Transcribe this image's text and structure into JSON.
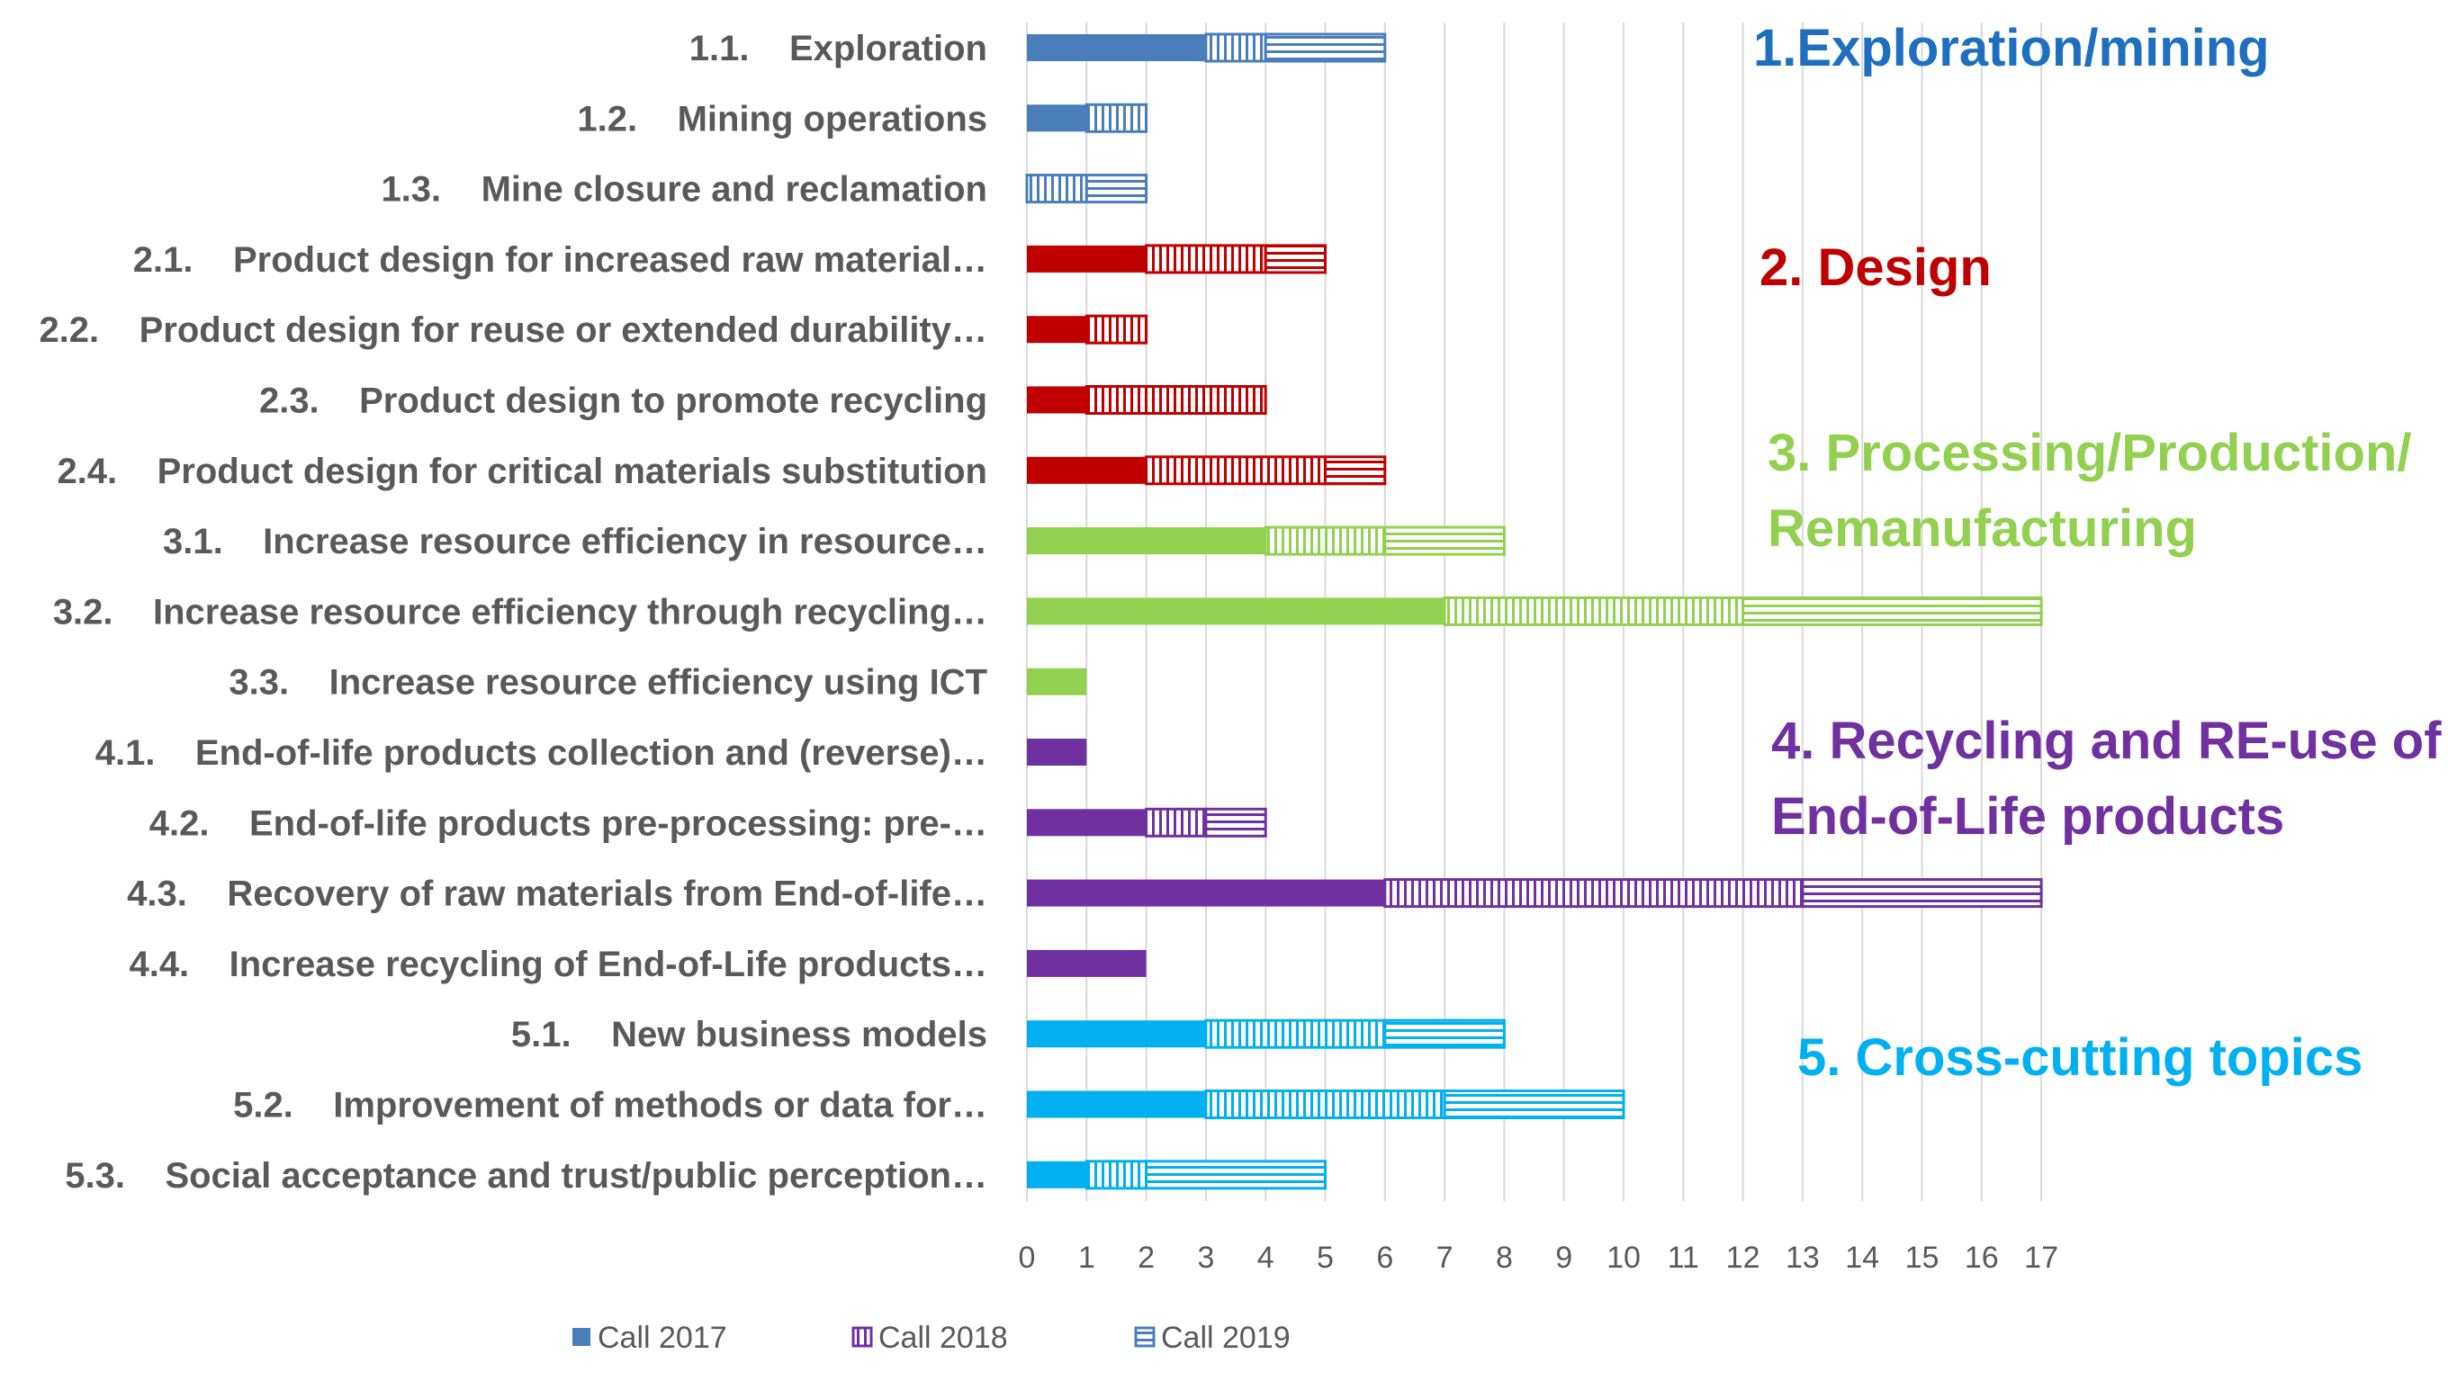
{
  "chart_data": {
    "type": "bar",
    "orientation": "horizontal",
    "stacked": true,
    "xlim": [
      0,
      17
    ],
    "xticks": [
      "0",
      "1",
      "2",
      "3",
      "4",
      "5",
      "6",
      "7",
      "8",
      "9",
      "10",
      "11",
      "12",
      "13",
      "14",
      "15",
      "16",
      "17"
    ],
    "grid": true,
    "legend_position": "bottom",
    "categories": [
      {
        "label": "1.1.    Exploration",
        "group": 1
      },
      {
        "label": "1.2.    Mining operations",
        "group": 1
      },
      {
        "label": "1.3.    Mine closure and reclamation",
        "group": 1
      },
      {
        "label": "2.1.    Product design for increased raw material…",
        "group": 2
      },
      {
        "label": "2.2.    Product design for reuse or extended durability…",
        "group": 2
      },
      {
        "label": "2.3.    Product design to promote recycling",
        "group": 2
      },
      {
        "label": "2.4.    Product design for critical materials substitution",
        "group": 2
      },
      {
        "label": "3.1.    Increase resource efficiency in resource…",
        "group": 3
      },
      {
        "label": "3.2.    Increase resource efficiency through recycling…",
        "group": 3
      },
      {
        "label": "3.3.    Increase resource efficiency using ICT",
        "group": 3
      },
      {
        "label": "4.1.    End-of-life products collection and (reverse)…",
        "group": 4
      },
      {
        "label": "4.2.    End-of-life products pre-processing: pre-…",
        "group": 4
      },
      {
        "label": "4.3.    Recovery of raw materials from End-of-life…",
        "group": 4
      },
      {
        "label": "4.4.    Increase recycling of End-of-Life products…",
        "group": 4
      },
      {
        "label": "5.1.    New business models",
        "group": 5
      },
      {
        "label": "5.2.    Improvement of methods or data for…",
        "group": 5
      },
      {
        "label": "5.3.    Social acceptance and trust/public perception…",
        "group": 5
      }
    ],
    "series": [
      {
        "name": "Call 2017",
        "pattern": "solid",
        "values": [
          3,
          1,
          0,
          2,
          1,
          1,
          2,
          4,
          7,
          1,
          1,
          2,
          6,
          2,
          3,
          3,
          1
        ]
      },
      {
        "name": "Call 2018",
        "pattern": "vertical-stripes",
        "values": [
          1,
          1,
          1,
          2,
          1,
          3,
          3,
          2,
          5,
          0,
          0,
          1,
          7,
          0,
          3,
          4,
          1
        ]
      },
      {
        "name": "Call 2019",
        "pattern": "horizontal-stripes",
        "values": [
          2,
          0,
          1,
          1,
          0,
          0,
          1,
          2,
          5,
          0,
          0,
          1,
          4,
          0,
          2,
          3,
          3
        ]
      }
    ],
    "groups": [
      {
        "id": 1,
        "lines": [
          "1.Exploration/mining"
        ],
        "color": "#4a7ebb"
      },
      {
        "id": 2,
        "lines": [
          "2. Design"
        ],
        "color": "#c00000"
      },
      {
        "id": 3,
        "lines": [
          "3. Processing/Production/",
          "Remanufacturing"
        ],
        "color": "#92d050"
      },
      {
        "id": 4,
        "lines": [
          "4. Recycling and RE-use of",
          "End-of-Life products"
        ],
        "color": "#7030a0"
      },
      {
        "id": 5,
        "lines": [
          "5. Cross-cutting topics"
        ],
        "color": "#00b0f0"
      }
    ],
    "group_label_colors": {
      "1": "#1f6fc0",
      "2": "#c00000",
      "3": "#92d050",
      "4": "#7030a0",
      "5": "#00b0f0"
    },
    "legend_color": "#7030a0",
    "legend_first_color": "#4a7ebb"
  }
}
